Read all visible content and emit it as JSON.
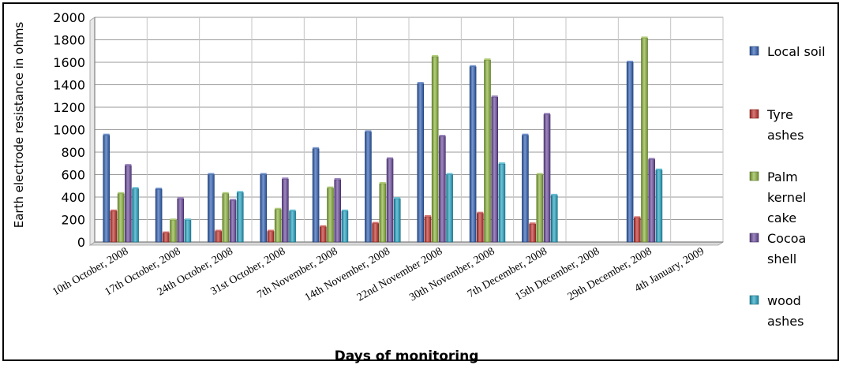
{
  "chart_data": {
    "type": "bar",
    "title": "",
    "xlabel": "Days of monitoring",
    "ylabel": "Earth electrode resistance in ohms",
    "ylim": [
      0,
      2000
    ],
    "yticks": [
      0,
      200,
      400,
      600,
      800,
      1000,
      1200,
      1400,
      1600,
      1800,
      2000
    ],
    "grid": true,
    "legend_position": "right",
    "categories": [
      "10th October, 2008",
      "17th October, 2008",
      "24th October, 2008",
      "31st October, 2008",
      "7th November, 2008",
      "14th November, 2008",
      "22nd November 2008",
      "30th November, 2008",
      "7th December, 2008",
      "15th December, 2008",
      "29th December, 2008",
      "4th January, 2009"
    ],
    "series": [
      {
        "name": "Local soil",
        "color": "#2f5fb3",
        "values": [
          950,
          470,
          600,
          600,
          830,
          980,
          1410,
          1560,
          950,
          null,
          1600,
          null
        ]
      },
      {
        "name": "Tyre ashes",
        "color": "#c0312c",
        "values": [
          275,
          80,
          95,
          95,
          135,
          165,
          225,
          255,
          160,
          null,
          215,
          null
        ]
      },
      {
        "name": "Palm kernel cake",
        "color": "#8bb33b",
        "values": [
          430,
          195,
          430,
          290,
          480,
          520,
          1650,
          1620,
          600,
          null,
          1815,
          null
        ]
      },
      {
        "name": "Cocoa shell",
        "color": "#6a4a9c",
        "values": [
          680,
          385,
          370,
          560,
          555,
          740,
          940,
          1290,
          1135,
          null,
          735,
          null
        ]
      },
      {
        "name": "wood ashes",
        "color": "#23a3c2",
        "values": [
          475,
          195,
          440,
          275,
          275,
          385,
          600,
          695,
          415,
          null,
          640,
          null
        ]
      }
    ],
    "legend_labels": [
      [
        "Local soil"
      ],
      [
        "Tyre",
        "ashes"
      ],
      [
        "Palm",
        "kernel",
        "cake"
      ],
      [
        "Cocoa",
        "shell"
      ],
      [
        "wood",
        "ashes"
      ]
    ]
  }
}
